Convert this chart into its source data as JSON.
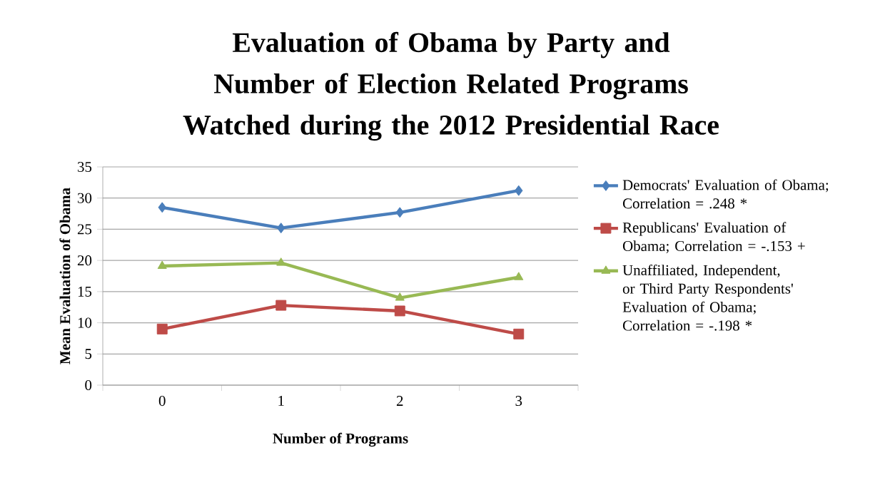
{
  "chart_data": {
    "type": "line",
    "title": "Evaluation of Obama by Party and Number of Election Related Programs Watched during the 2012 Presidential Race",
    "xlabel": "Number of Programs",
    "ylabel": "Mean Evaluation of Obama",
    "categories": [
      "0",
      "1",
      "2",
      "3"
    ],
    "series": [
      {
        "name": "Democrats' Evaluation of Obama; Correlation = .248 *",
        "color": "#4a7ebb",
        "marker": "diamond",
        "values": [
          28.5,
          25.2,
          27.7,
          31.2
        ]
      },
      {
        "name": "Republicans' Evaluation of Obama; Correlation = -.153 +",
        "color": "#be4b48",
        "marker": "square",
        "values": [
          9.0,
          12.8,
          11.9,
          8.2
        ]
      },
      {
        "name": "Unaffiliated, Independent, or Third Party Respondents' Evaluation of Obama; Correlation = -.198 *",
        "color": "#98b954",
        "marker": "triangle",
        "values": [
          19.1,
          19.6,
          14.0,
          17.3
        ]
      }
    ],
    "ylim": [
      0,
      35
    ],
    "yticks": [
      0,
      5,
      10,
      15,
      20,
      25,
      30,
      35
    ],
    "grid": "y",
    "legend": "right"
  }
}
